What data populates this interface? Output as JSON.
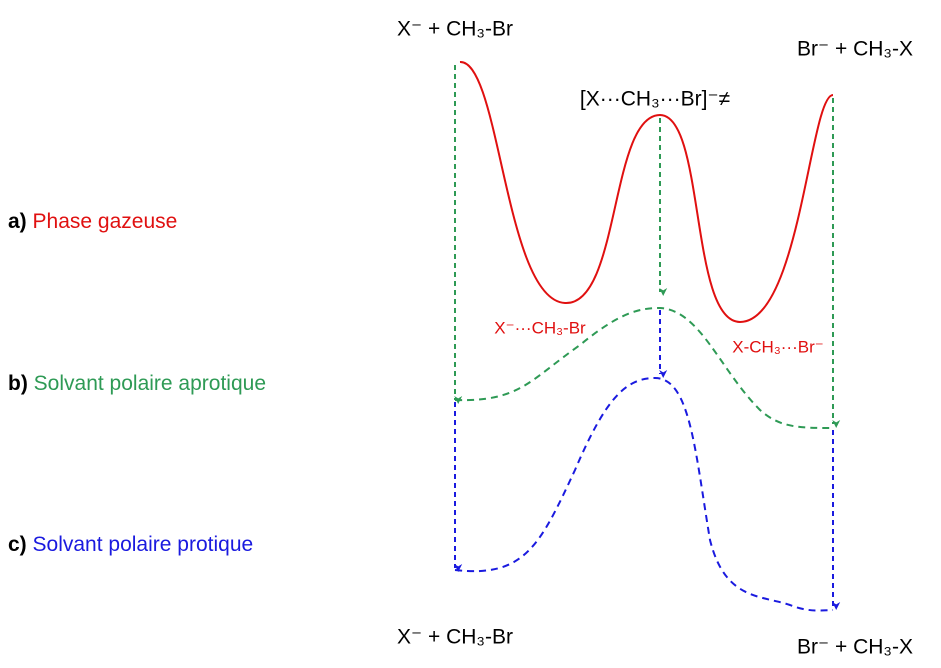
{
  "species": {
    "reactants_top": "X⁻ + CH₃-Br",
    "products_top": "Br⁻ + CH₃-X",
    "transition_state": "[X···CH₃···Br]⁻≠",
    "complex_left": "X⁻···CH₃-Br",
    "complex_right": "X-CH₃···Br⁻",
    "reactants_bottom": "X⁻ + CH₃-Br",
    "products_bottom": "Br⁻ + CH₃-X"
  },
  "phases": [
    {
      "letter": "a)",
      "name": "Phase gazeuse"
    },
    {
      "letter": "b)",
      "name": "Solvant polaire aprotique"
    },
    {
      "letter": "c)",
      "name": "Solvant polaire protique"
    }
  ]
}
